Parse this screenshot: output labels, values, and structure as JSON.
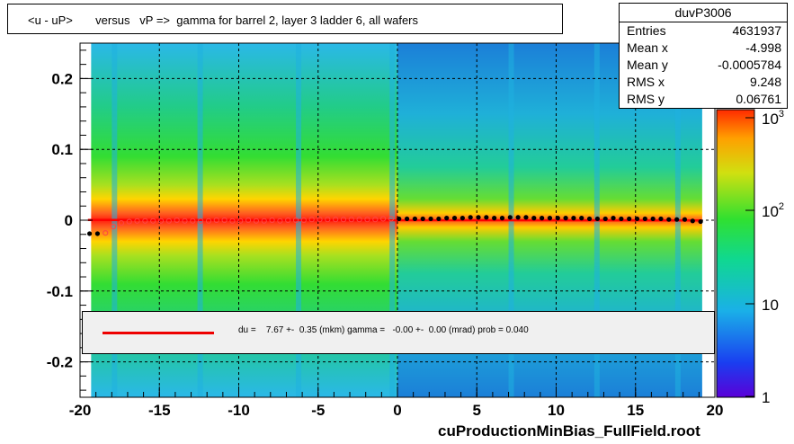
{
  "chart_data": {
    "type": "heatmap",
    "title": "<u - uP>       versus   vP =>  gamma for barrel 2, layer 3 ladder 6, all wafers",
    "xlim": [
      -20,
      20
    ],
    "ylim": [
      -0.25,
      0.25
    ],
    "x_ticks": [
      "-20",
      "-15",
      "-10",
      "-5",
      "0",
      "5",
      "10",
      "15",
      "20"
    ],
    "y_ticks": [
      "0.2",
      "0.1",
      "0",
      "-0.1",
      "-0.2"
    ],
    "z_scale": "log",
    "z_ticks": [
      "10^3",
      "10^2",
      "10",
      "1"
    ],
    "grid": true,
    "profile_points": {
      "x": [
        -19.4,
        -18.9,
        -18.4,
        -17.9,
        -17.4,
        -16.9,
        -16.4,
        -15.9,
        -15.4,
        -14.9,
        -14.4,
        -13.9,
        -13.4,
        -12.9,
        -12.4,
        -11.9,
        -11.4,
        -10.9,
        -10.4,
        -9.9,
        -9.4,
        -8.9,
        -8.4,
        -7.9,
        -7.4,
        -6.9,
        -6.4,
        -5.9,
        -5.4,
        -4.9,
        -4.4,
        -3.9,
        -3.4,
        -2.9,
        -2.4,
        -1.9,
        -1.4,
        -0.9,
        -0.4,
        0.1,
        0.6,
        1.1,
        1.6,
        2.1,
        2.6,
        3.1,
        3.6,
        4.1,
        4.6,
        5.1,
        5.6,
        6.1,
        6.6,
        7.1,
        7.6,
        8.1,
        8.6,
        9.1,
        9.6,
        10.1,
        10.6,
        11.1,
        11.6,
        12.1,
        12.6,
        13.1,
        13.6,
        14.1,
        14.6,
        15.1,
        15.6,
        16.1,
        16.6,
        17.1,
        17.6,
        18.1,
        18.6,
        19.1
      ],
      "y": [
        -0.019,
        -0.019,
        -0.018,
        -0.009,
        -0.004,
        -0.002,
        -0.001,
        -0.001,
        -0.001,
        -0.001,
        -0.001,
        0,
        -0.001,
        -0.001,
        -0.001,
        -0.001,
        0,
        0,
        -0.001,
        -0.001,
        0,
        -0.001,
        -0.001,
        0,
        -0.001,
        0,
        0,
        0,
        0.001,
        0.001,
        0.001,
        0.001,
        0.001,
        0.001,
        0.001,
        0.001,
        0.001,
        0.002,
        0.002,
        0.002,
        0.002,
        0.002,
        0.002,
        0.002,
        0.002,
        0.003,
        0.003,
        0.003,
        0.004,
        0.004,
        0.004,
        0.003,
        0.003,
        0.004,
        0.004,
        0.004,
        0.003,
        0.003,
        0.003,
        0.003,
        0.003,
        0.003,
        0.003,
        0.002,
        0.002,
        0.002,
        0.003,
        0.002,
        0.002,
        0.002,
        0.002,
        0.002,
        0.002,
        0.001,
        0.001,
        0.001,
        -0.001,
        -0.002
      ]
    },
    "fit": {
      "x0": -19.5,
      "y0": 0.0003,
      "x1": 19.2,
      "y1": -0.0003,
      "color": "#ff0000"
    },
    "legend_text": "du =    7.67 +-  0.35 (mkm) gamma =   -0.00 +-  0.00 (mrad) prob = 0.040"
  },
  "stats": {
    "name": "duvP3006",
    "rows": [
      {
        "label": "Entries",
        "value": "4631937"
      },
      {
        "label": "Mean x",
        "value": "-4.998"
      },
      {
        "label": "Mean y",
        "value": "-0.0005784"
      },
      {
        "label": "RMS x",
        "value": "9.248"
      },
      {
        "label": "RMS y",
        "value": "0.06761"
      }
    ]
  },
  "footer": "cuProductionMinBias_FullField.root"
}
